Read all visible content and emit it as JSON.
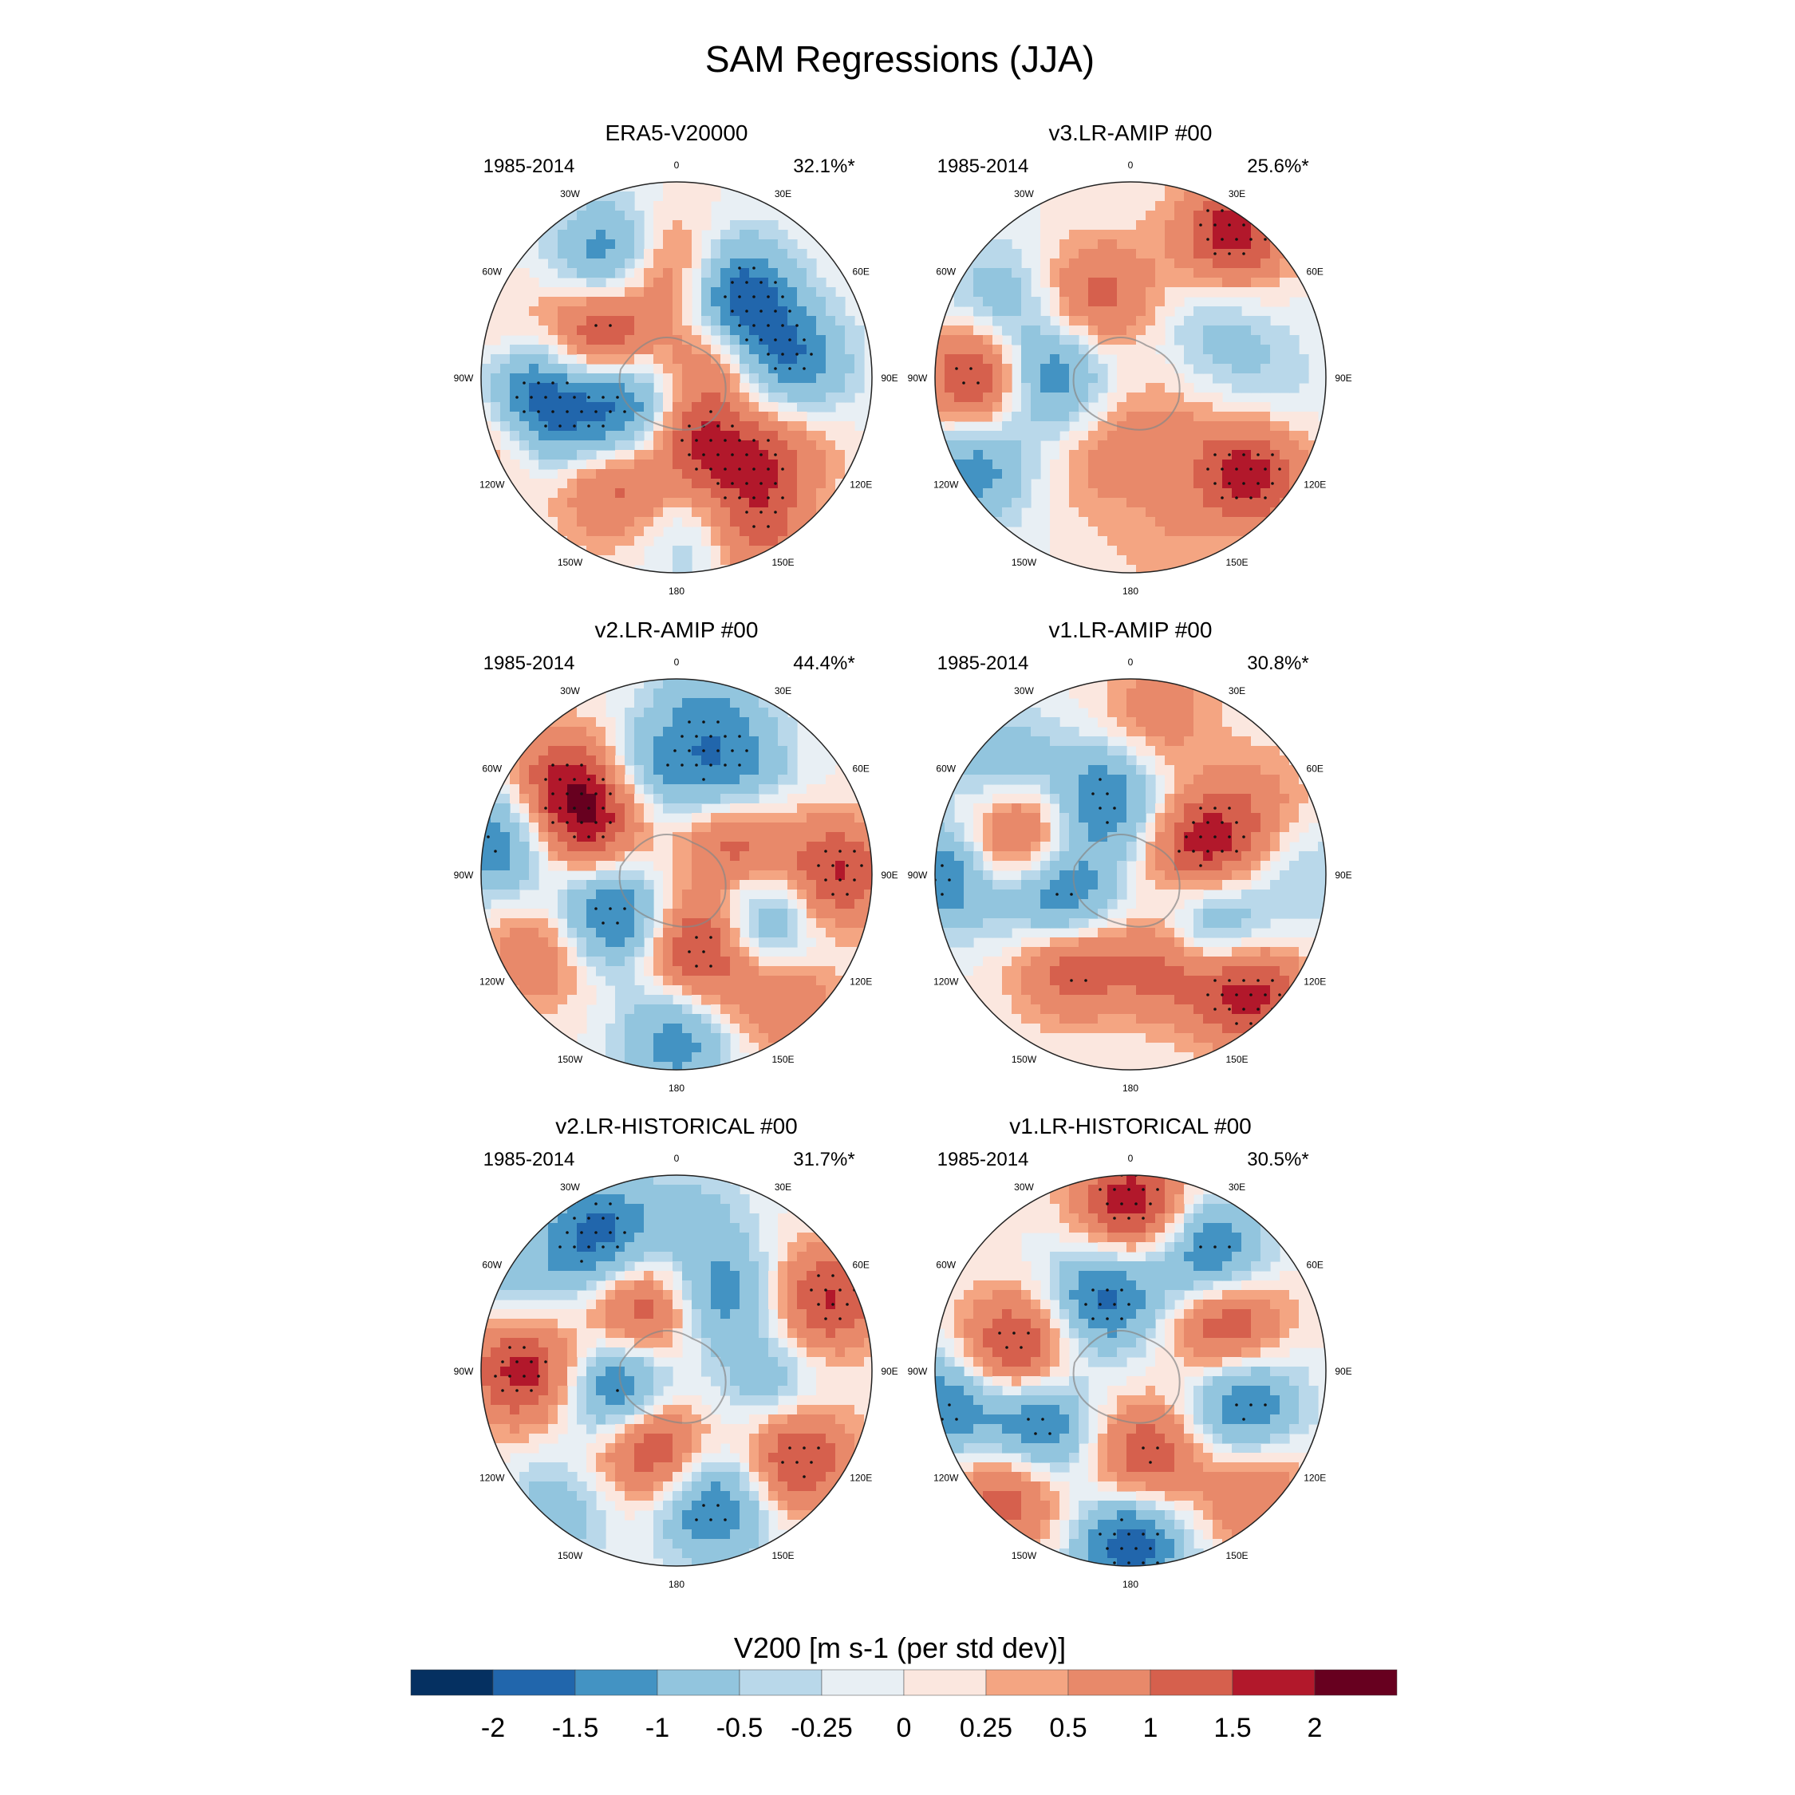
{
  "figure": {
    "title": "SAM Regressions (JJA)"
  },
  "panels": [
    {
      "title": "ERA5-V20000",
      "period": "1985-2014",
      "variance": "32.1%*",
      "blobs": [
        {
          "lon": 150,
          "r": 0.55,
          "amp": -1.6
        },
        {
          "lon": 120,
          "r": 0.45,
          "amp": -1.4
        },
        {
          "lon": 95,
          "r": 0.62,
          "amp": -1.2
        },
        {
          "lon": 100,
          "r": 0.25,
          "amp": 2.0
        },
        {
          "lon": 60,
          "r": 0.3,
          "amp": -1.6
        },
        {
          "lon": 20,
          "r": 0.3,
          "amp": 1.6
        },
        {
          "lon": 10,
          "r": 0.82,
          "amp": -0.9
        },
        {
          "lon": 25,
          "r": 0.85,
          "amp": 1.5
        },
        {
          "lon": 55,
          "r": 0.65,
          "amp": 0.9
        },
        {
          "lon": 40,
          "r": 0.45,
          "amp": 1.0
        },
        {
          "lon": -30,
          "r": 0.65,
          "amp": 1.2
        },
        {
          "lon": -60,
          "r": 0.3,
          "amp": -1.8
        },
        {
          "lon": -70,
          "r": 0.7,
          "amp": -1.2
        },
        {
          "lon": -90,
          "r": 0.75,
          "amp": -1.5
        },
        {
          "lon": -70,
          "r": 0.95,
          "amp": 0.8
        },
        {
          "lon": -120,
          "r": 0.45,
          "amp": 1.8
        },
        {
          "lon": -150,
          "r": 0.7,
          "amp": -1.5
        },
        {
          "lon": -180,
          "r": 0.55,
          "amp": 1.3
        },
        {
          "lon": -100,
          "r": 0.85,
          "amp": 0.7
        }
      ]
    },
    {
      "title": "v3.LR-AMIP  #00",
      "period": "1985-2014",
      "variance": "25.6%*",
      "blobs": [
        {
          "lon": 50,
          "r": 0.78,
          "amp": 1.8
        },
        {
          "lon": 145,
          "r": 0.9,
          "amp": 1.8
        },
        {
          "lon": -90,
          "r": 0.42,
          "amp": -1.5
        },
        {
          "lon": -90,
          "r": 0.78,
          "amp": 1.8
        },
        {
          "lon": -60,
          "r": 0.92,
          "amp": -1.3
        },
        {
          "lon": -160,
          "r": 0.45,
          "amp": 1.2
        },
        {
          "lon": -120,
          "r": 0.8,
          "amp": -0.8
        },
        {
          "lon": 120,
          "r": 0.5,
          "amp": -0.6
        },
        {
          "lon": 90,
          "r": 0.7,
          "amp": -0.4
        },
        {
          "lon": -20,
          "r": 0.45,
          "amp": 0.6
        },
        {
          "lon": 30,
          "r": 0.3,
          "amp": 0.5
        },
        {
          "lon": 10,
          "r": 0.85,
          "amp": 0.4
        }
      ]
    },
    {
      "title": "v2.LR-AMIP  #00",
      "period": "1985-2014",
      "variance": "44.4%*",
      "blobs": [
        {
          "lon": 0,
          "r": 0.85,
          "amp": -1.3
        },
        {
          "lon": 20,
          "r": 0.4,
          "amp": 1.9
        },
        {
          "lon": 60,
          "r": 0.5,
          "amp": -1.5
        },
        {
          "lon": 90,
          "r": 0.82,
          "amp": 1.6
        },
        {
          "lon": 120,
          "r": 0.35,
          "amp": 1.4
        },
        {
          "lon": 150,
          "r": 0.6,
          "amp": -1.3
        },
        {
          "lon": -60,
          "r": 0.4,
          "amp": -1.8
        },
        {
          "lon": -60,
          "r": 0.8,
          "amp": 1.0
        },
        {
          "lon": -100,
          "r": 0.95,
          "amp": -1.5
        },
        {
          "lon": -120,
          "r": 0.5,
          "amp": 1.6
        },
        {
          "lon": -130,
          "r": 0.75,
          "amp": 1.4
        },
        {
          "lon": -170,
          "r": 0.55,
          "amp": -1.0
        },
        {
          "lon": 170,
          "r": 0.9,
          "amp": -0.8
        },
        {
          "lon": 40,
          "r": 0.85,
          "amp": 1.0
        }
      ]
    },
    {
      "title": "v1.LR-AMIP  #00",
      "period": "1985-2014",
      "variance": "30.8%*",
      "blobs": [
        {
          "lon": 45,
          "r": 0.85,
          "amp": 1.8
        },
        {
          "lon": 60,
          "r": 0.5,
          "amp": -1.4
        },
        {
          "lon": 110,
          "r": 0.4,
          "amp": 1.8
        },
        {
          "lon": 120,
          "r": 0.75,
          "amp": 0.6
        },
        {
          "lon": -70,
          "r": 0.38,
          "amp": -1.8
        },
        {
          "lon": -90,
          "r": 0.95,
          "amp": -1.5
        },
        {
          "lon": -110,
          "r": 0.62,
          "amp": 1.6
        },
        {
          "lon": -160,
          "r": 0.4,
          "amp": -1.5
        },
        {
          "lon": -130,
          "r": 0.85,
          "amp": -1.0
        },
        {
          "lon": -35,
          "r": 0.55,
          "amp": 1.5
        },
        {
          "lon": 20,
          "r": 0.5,
          "amp": 1.2
        },
        {
          "lon": 170,
          "r": 0.85,
          "amp": 0.8
        },
        {
          "lon": 90,
          "r": 0.92,
          "amp": -0.5
        }
      ]
    },
    {
      "title": "v2.LR-HISTORICAL  #00",
      "period": "1985-2014",
      "variance": "31.7%*",
      "blobs": [
        {
          "lon": 15,
          "r": 0.72,
          "amp": -1.6
        },
        {
          "lon": 55,
          "r": 0.75,
          "amp": 1.7
        },
        {
          "lon": -20,
          "r": 0.4,
          "amp": 1.9
        },
        {
          "lon": -70,
          "r": 0.3,
          "amp": -2.0
        },
        {
          "lon": -90,
          "r": 0.78,
          "amp": 1.8
        },
        {
          "lon": -150,
          "r": 0.35,
          "amp": 1.6
        },
        {
          "lon": -150,
          "r": 0.8,
          "amp": -1.7
        },
        {
          "lon": 115,
          "r": 0.85,
          "amp": 1.6
        },
        {
          "lon": 150,
          "r": 0.45,
          "amp": -1.3
        },
        {
          "lon": 80,
          "r": 0.5,
          "amp": -0.9
        },
        {
          "lon": -40,
          "r": 0.95,
          "amp": -0.8
        },
        {
          "lon": -120,
          "r": 0.9,
          "amp": -0.7
        },
        {
          "lon": 175,
          "r": 0.8,
          "amp": -0.6
        }
      ]
    },
    {
      "title": "v1.LR-HISTORICAL  #00",
      "period": "1985-2014",
      "variance": "30.5%*",
      "blobs": [
        {
          "lon": 0,
          "r": 0.88,
          "amp": -1.9
        },
        {
          "lon": 10,
          "r": 0.45,
          "amp": 1.5
        },
        {
          "lon": 75,
          "r": 0.6,
          "amp": -1.7
        },
        {
          "lon": -60,
          "r": 0.55,
          "amp": -1.7
        },
        {
          "lon": -80,
          "r": 0.95,
          "amp": -1.4
        },
        {
          "lon": -100,
          "r": 0.6,
          "amp": 1.8
        },
        {
          "lon": -160,
          "r": 0.4,
          "amp": -1.7
        },
        {
          "lon": 115,
          "r": 0.55,
          "amp": 1.8
        },
        {
          "lon": 145,
          "r": 0.72,
          "amp": -1.7
        },
        {
          "lon": 180,
          "r": 0.85,
          "amp": 1.9
        },
        {
          "lon": -45,
          "r": 0.9,
          "amp": 1.4
        },
        {
          "lon": 45,
          "r": 0.9,
          "amp": 1.0
        }
      ]
    }
  ],
  "map_labels": {
    "lon_0": "0",
    "lon_30e": "30E",
    "lon_60e": "60E",
    "lon_90e": "90E",
    "lon_120e": "120E",
    "lon_150e": "150E",
    "lon_180": "180",
    "lon_150w": "150W",
    "lon_120w": "120W",
    "lon_90w": "90W",
    "lon_60w": "60W",
    "lon_30w": "30W"
  },
  "colorbar": {
    "title": "V200 [m s-1 (per std dev)]",
    "colors": [
      "#053061",
      "#2166ac",
      "#4393c3",
      "#92c5de",
      "#b9d8ea",
      "#e8eff4",
      "#fbe7df",
      "#f4a582",
      "#e8896a",
      "#d6604d",
      "#b2182b",
      "#67001f"
    ],
    "tick_labels": [
      "-2",
      "-1.5",
      "-1",
      "-0.5",
      "-0.25",
      "0",
      "0.25",
      "0.5",
      "1",
      "1.5",
      "2"
    ],
    "levels": [
      -2,
      -1.5,
      -1,
      -0.5,
      -0.25,
      0,
      0.25,
      0.5,
      1,
      1.5,
      2
    ]
  }
}
